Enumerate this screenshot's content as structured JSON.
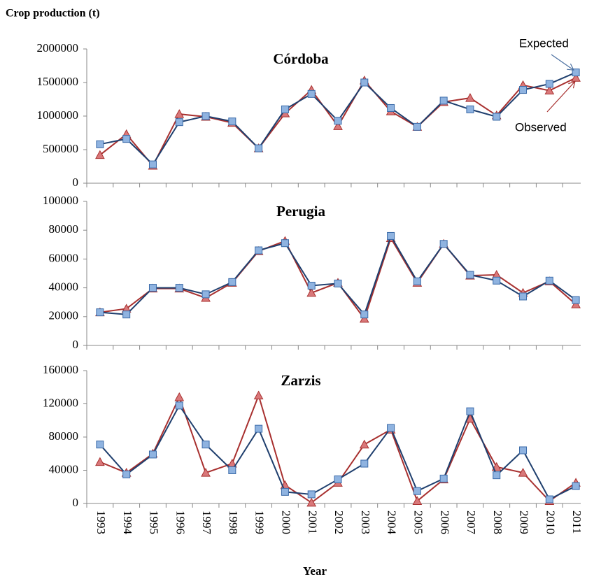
{
  "y_label": "Crop production (t)",
  "chart_data": [
    {
      "type": "line",
      "title": "Córdoba",
      "ylim": [
        0,
        2000000
      ],
      "yticks": [
        0,
        500000,
        1000000,
        1500000,
        2000000
      ],
      "annotations": [
        "Expected",
        "Observed"
      ],
      "series": [
        {
          "name": "Observed",
          "color": "#a8302f",
          "marker_color": "#d9787a",
          "marker": "triangle",
          "values": [
            420000,
            730000,
            260000,
            1030000,
            990000,
            900000,
            520000,
            1040000,
            1390000,
            850000,
            1530000,
            1070000,
            840000,
            1210000,
            1270000,
            1010000,
            1460000,
            1380000,
            1570000
          ]
        },
        {
          "name": "Expected",
          "color": "#1f3f6e",
          "marker_color": "#8fb3e0",
          "marker": "square",
          "values": [
            580000,
            660000,
            280000,
            910000,
            1000000,
            920000,
            520000,
            1100000,
            1330000,
            930000,
            1500000,
            1120000,
            840000,
            1230000,
            1100000,
            990000,
            1390000,
            1480000,
            1650000
          ]
        }
      ]
    },
    {
      "type": "line",
      "title": "Perugia",
      "ylim": [
        0,
        100000
      ],
      "yticks": [
        0,
        20000,
        40000,
        60000,
        80000,
        100000
      ],
      "series": [
        {
          "name": "Observed",
          "color": "#a8302f",
          "marker_color": "#d9787a",
          "marker": "triangle",
          "values": [
            23000,
            25500,
            39500,
            39500,
            33000,
            43500,
            65500,
            72500,
            36500,
            43500,
            18500,
            74500,
            43500,
            70500,
            48500,
            49000,
            36500,
            44500,
            28500
          ]
        },
        {
          "name": "Expected",
          "color": "#1f3f6e",
          "marker_color": "#8fb3e0",
          "marker": "square",
          "values": [
            23000,
            21500,
            40000,
            40000,
            35500,
            44000,
            66000,
            71000,
            41500,
            43000,
            21500,
            76000,
            44500,
            70500,
            49000,
            45000,
            34000,
            45000,
            31500
          ]
        }
      ]
    },
    {
      "type": "line",
      "title": "Zarzis",
      "ylim": [
        0,
        160000
      ],
      "yticks": [
        0,
        40000,
        80000,
        120000,
        160000
      ],
      "x_label": "Year",
      "categories": [
        "1993",
        "1994",
        "1995",
        "1996",
        "1997",
        "1998",
        "1999",
        "2000",
        "2001",
        "2002",
        "2003",
        "2004",
        "2005",
        "2006",
        "2007",
        "2008",
        "2009",
        "2010",
        "2011"
      ],
      "series": [
        {
          "name": "Observed",
          "color": "#a8302f",
          "marker_color": "#d9787a",
          "marker": "triangle",
          "values": [
            50000,
            37000,
            60000,
            128000,
            37000,
            48000,
            130000,
            22000,
            1000,
            25000,
            71000,
            89000,
            3000,
            29000,
            102000,
            44000,
            37000,
            3000,
            25000
          ]
        },
        {
          "name": "Expected",
          "color": "#1f3f6e",
          "marker_color": "#8fb3e0",
          "marker": "square",
          "values": [
            71000,
            35000,
            59000,
            118000,
            71000,
            40000,
            90000,
            14000,
            11000,
            29000,
            48000,
            91000,
            15000,
            30000,
            111000,
            34000,
            64000,
            5000,
            21000
          ]
        }
      ]
    }
  ]
}
